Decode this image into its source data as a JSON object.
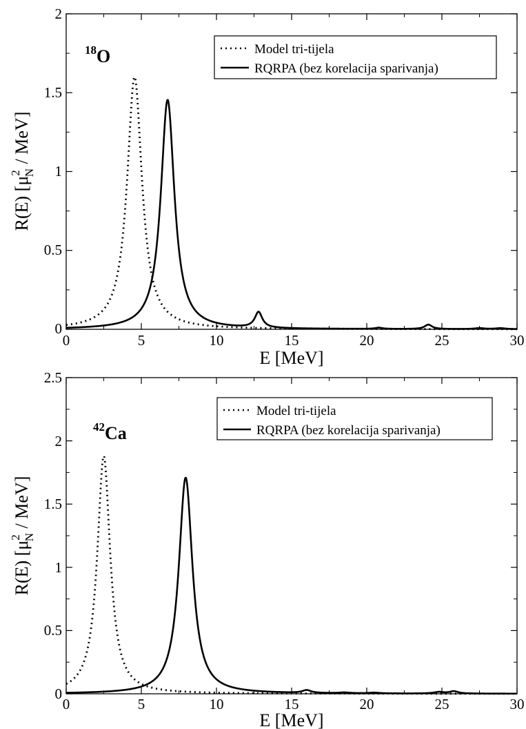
{
  "chart_data": [
    {
      "type": "line",
      "title": "",
      "nucleus_mass": "18",
      "nucleus_symbol": "O",
      "xlabel": "E [MeV]",
      "ylabel_main": "R(E) [",
      "ylabel_mu": "μ",
      "ylabel_sup": "2",
      "ylabel_sub": "N",
      "ylabel_unit": " / MeV]",
      "xlim": [
        0,
        30
      ],
      "ylim": [
        0,
        2
      ],
      "xticks": [
        "0",
        "5",
        "10",
        "15",
        "20",
        "25",
        "30"
      ],
      "yticks": [
        "0",
        "0.5",
        "1",
        "1.5",
        "2"
      ],
      "legend_position": "top-right",
      "series": [
        {
          "name": "Model tri-tijela",
          "style": "dotted",
          "peaks": [
            {
              "x": 4.55,
              "height": 1.6,
              "width": 0.6
            }
          ]
        },
        {
          "name": "RQRPA (bez korelacija sparivanja)",
          "style": "solid",
          "peaks": [
            {
              "x": 6.75,
              "height": 1.455,
              "width": 0.55
            },
            {
              "x": 12.8,
              "height": 0.1,
              "width": 0.3
            },
            {
              "x": 20.8,
              "height": 0.008,
              "width": 0.3
            },
            {
              "x": 24.1,
              "height": 0.028,
              "width": 0.3
            },
            {
              "x": 27.5,
              "height": 0.006,
              "width": 0.4
            },
            {
              "x": 28.9,
              "height": 0.006,
              "width": 0.4
            }
          ]
        }
      ]
    },
    {
      "type": "line",
      "title": "",
      "nucleus_mass": "42",
      "nucleus_symbol": "Ca",
      "xlabel": "E [MeV]",
      "ylabel_main": "R(E) [",
      "ylabel_mu": "μ",
      "ylabel_sup": "2",
      "ylabel_sub": "N",
      "ylabel_unit": " / MeV]",
      "xlim": [
        0,
        30
      ],
      "ylim": [
        0,
        2.5
      ],
      "xticks": [
        "0",
        "5",
        "10",
        "15",
        "20",
        "25",
        "30"
      ],
      "yticks": [
        "0",
        "0.5",
        "1",
        "1.5",
        "2",
        "2.5"
      ],
      "legend_position": "top-right",
      "series": [
        {
          "name": "Model tri-tijela",
          "style": "dotted",
          "peaks": [
            {
              "x": 2.5,
              "height": 1.88,
              "width": 0.52
            }
          ]
        },
        {
          "name": "RQRPA (bez korelacija sparivanja)",
          "style": "solid",
          "peaks": [
            {
              "x": 7.95,
              "height": 1.71,
              "width": 0.55
            },
            {
              "x": 16.0,
              "height": 0.022,
              "width": 0.35
            },
            {
              "x": 18.5,
              "height": 0.006,
              "width": 0.4
            },
            {
              "x": 20.5,
              "height": 0.006,
              "width": 0.4
            },
            {
              "x": 24.8,
              "height": 0.012,
              "width": 0.4
            },
            {
              "x": 25.8,
              "height": 0.018,
              "width": 0.35
            }
          ]
        }
      ]
    }
  ]
}
